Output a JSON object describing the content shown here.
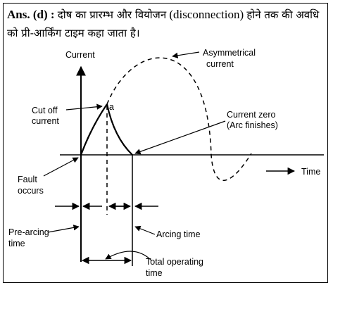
{
  "answer": {
    "label": "Ans. (d) :",
    "text_part1": "दोष का प्रारम्भ और वियोजन",
    "text_en": "(disconnection)",
    "text_part2": "होने तक की अवधि को प्री-आर्किंग टाइम कहा जाता है।"
  },
  "diagram": {
    "y_axis_label": "Current",
    "x_axis_label": "Time",
    "asymmetrical_current": [
      "Asymmetrical",
      "current"
    ],
    "cut_off_current": [
      "Cut off",
      "current"
    ],
    "point_label": "a",
    "current_zero": [
      "Current zero",
      "(Arc finishes)"
    ],
    "fault_occurs": [
      "Fault",
      "occurs"
    ],
    "pre_arcing_time": [
      "Pre-arcing",
      "time"
    ],
    "arcing_time": "Arcing time",
    "total_operating_time": [
      "Total operating",
      "time"
    ]
  }
}
